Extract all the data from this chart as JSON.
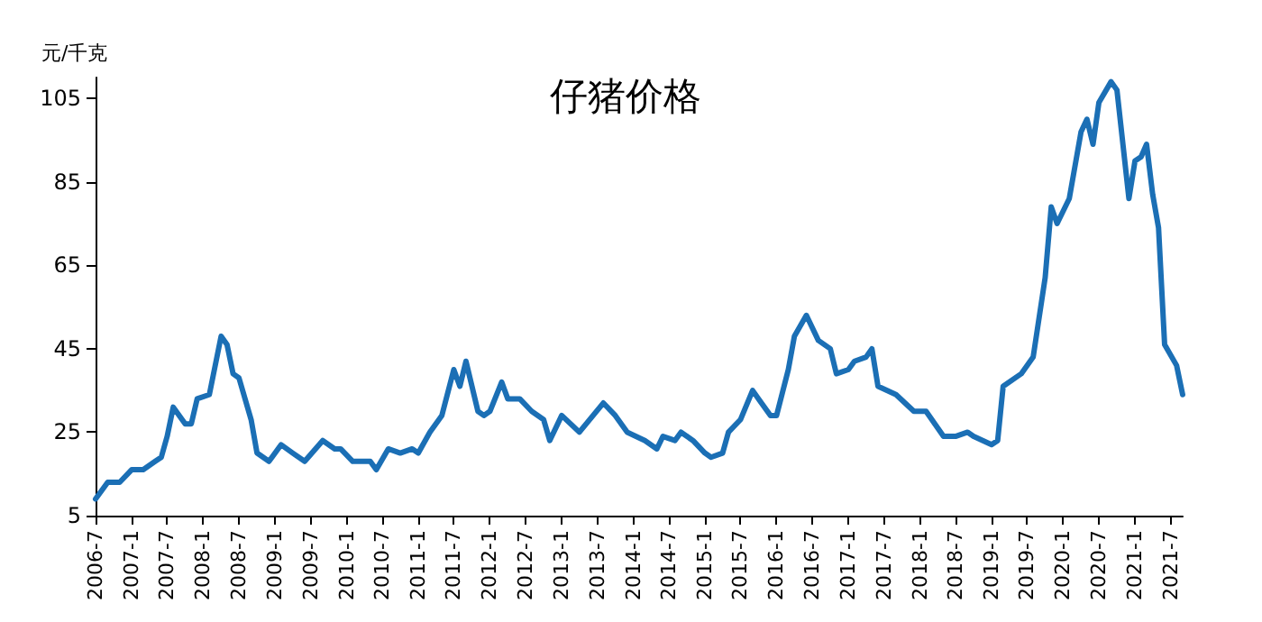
{
  "chart_data": {
    "type": "line",
    "title": "仔猪价格",
    "ylabel": "元/千克",
    "x": [
      "2006-07",
      "2006-09",
      "2006-11",
      "2007-01",
      "2007-03",
      "2007-05",
      "2007-06",
      "2007-07",
      "2007-08",
      "2007-10",
      "2007-11",
      "2007-12",
      "2008-02",
      "2008-04",
      "2008-05",
      "2008-06",
      "2008-07",
      "2008-09",
      "2008-10",
      "2008-12",
      "2009-02",
      "2009-04",
      "2009-06",
      "2009-09",
      "2009-11",
      "2009-12",
      "2010-02",
      "2010-05",
      "2010-06",
      "2010-08",
      "2010-10",
      "2010-12",
      "2011-01",
      "2011-03",
      "2011-05",
      "2011-07",
      "2011-08",
      "2011-09",
      "2011-11",
      "2011-12",
      "2012-01",
      "2012-03",
      "2012-04",
      "2012-06",
      "2012-08",
      "2012-10",
      "2012-11",
      "2013-01",
      "2013-04",
      "2013-08",
      "2013-10",
      "2013-12",
      "2014-03",
      "2014-05",
      "2014-06",
      "2014-08",
      "2014-09",
      "2014-11",
      "2015-01",
      "2015-02",
      "2015-04",
      "2015-05",
      "2015-07",
      "2015-09",
      "2015-10",
      "2015-12",
      "2016-01",
      "2016-03",
      "2016-04",
      "2016-06",
      "2016-08",
      "2016-10",
      "2016-11",
      "2017-01",
      "2017-02",
      "2017-04",
      "2017-05",
      "2017-06",
      "2017-09",
      "2017-12",
      "2018-02",
      "2018-05",
      "2018-07",
      "2018-09",
      "2018-10",
      "2019-01",
      "2019-02",
      "2019-03",
      "2019-06",
      "2019-08",
      "2019-10",
      "2019-11",
      "2019-12",
      "2020-02",
      "2020-04",
      "2020-05",
      "2020-06",
      "2020-07",
      "2020-09",
      "2020-10",
      "2020-12",
      "2021-01",
      "2021-02",
      "2021-03",
      "2021-04",
      "2021-05",
      "2021-06",
      "2021-08",
      "2021-09"
    ],
    "series": [
      {
        "color": "#1b6fb5",
        "values": [
          9,
          13,
          13,
          16,
          16,
          18,
          19,
          24,
          31,
          27,
          27,
          33,
          34,
          48,
          46,
          39,
          38,
          28,
          20,
          18,
          22,
          20,
          18,
          23,
          21,
          21,
          18,
          18,
          16,
          21,
          20,
          21,
          20,
          25,
          29,
          40,
          36,
          42,
          30,
          29,
          30,
          37,
          33,
          33,
          30,
          28,
          23,
          29,
          25,
          32,
          29,
          25,
          23,
          21,
          24,
          23,
          25,
          23,
          20,
          19,
          20,
          25,
          28,
          35,
          33,
          29,
          29,
          40,
          48,
          53,
          47,
          45,
          39,
          40,
          42,
          43,
          45,
          36,
          34,
          30,
          30,
          24,
          24,
          25,
          24,
          22,
          23,
          36,
          39,
          43,
          62,
          79,
          75,
          81,
          97,
          100,
          94,
          104,
          109,
          107,
          81,
          90,
          91,
          94,
          82,
          74,
          46,
          41,
          34
        ]
      }
    ],
    "xlim": [
      "2006-07",
      "2021-09"
    ],
    "xticks": [
      {
        "value": "2006-07",
        "label": "2006-7"
      },
      {
        "value": "2007-01",
        "label": "2007-1"
      },
      {
        "value": "2007-07",
        "label": "2007-7"
      },
      {
        "value": "2008-01",
        "label": "2008-1"
      },
      {
        "value": "2008-07",
        "label": "2008-7"
      },
      {
        "value": "2009-01",
        "label": "2009-1"
      },
      {
        "value": "2009-07",
        "label": "2009-7"
      },
      {
        "value": "2010-01",
        "label": "2010-1"
      },
      {
        "value": "2010-07",
        "label": "2010-7"
      },
      {
        "value": "2011-01",
        "label": "2011-1"
      },
      {
        "value": "2011-07",
        "label": "2011-7"
      },
      {
        "value": "2012-01",
        "label": "2012-1"
      },
      {
        "value": "2012-07",
        "label": "2012-7"
      },
      {
        "value": "2013-01",
        "label": "2013-1"
      },
      {
        "value": "2013-07",
        "label": "2013-7"
      },
      {
        "value": "2014-01",
        "label": "2014-1"
      },
      {
        "value": "2014-07",
        "label": "2014-7"
      },
      {
        "value": "2015-01",
        "label": "2015-1"
      },
      {
        "value": "2015-07",
        "label": "2015-7"
      },
      {
        "value": "2016-01",
        "label": "2016-1"
      },
      {
        "value": "2016-07",
        "label": "2016-7"
      },
      {
        "value": "2017-01",
        "label": "2017-1"
      },
      {
        "value": "2017-07",
        "label": "2017-7"
      },
      {
        "value": "2018-01",
        "label": "2018-1"
      },
      {
        "value": "2018-07",
        "label": "2018-7"
      },
      {
        "value": "2019-01",
        "label": "2019-1"
      },
      {
        "value": "2019-07",
        "label": "2019-7"
      },
      {
        "value": "2020-01",
        "label": "2020-1"
      },
      {
        "value": "2020-07",
        "label": "2020-7"
      },
      {
        "value": "2021-01",
        "label": "2021-1"
      },
      {
        "value": "2021-07",
        "label": "2021-7"
      }
    ],
    "ylim": [
      5,
      110
    ],
    "yticks": [
      5,
      25,
      45,
      65,
      85,
      105
    ],
    "grid": false,
    "marker": "none",
    "line_style": "solid"
  }
}
